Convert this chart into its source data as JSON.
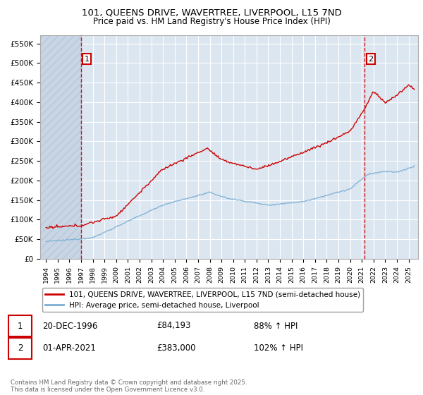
{
  "title_line1": "101, QUEENS DRIVE, WAVERTREE, LIVERPOOL, L15 7ND",
  "title_line2": "Price paid vs. HM Land Registry's House Price Index (HPI)",
  "ylim": [
    0,
    570000
  ],
  "yticks": [
    0,
    50000,
    100000,
    150000,
    200000,
    250000,
    300000,
    350000,
    400000,
    450000,
    500000,
    550000
  ],
  "ytick_labels": [
    "£0",
    "£50K",
    "£100K",
    "£150K",
    "£200K",
    "£250K",
    "£300K",
    "£350K",
    "£400K",
    "£450K",
    "£500K",
    "£550K"
  ],
  "background_color": "#ffffff",
  "plot_bg_color": "#dce6f1",
  "hatch_color": "#c0c8d8",
  "grid_color": "#ffffff",
  "property_color": "#cc0000",
  "hpi_color": "#7bafd4",
  "marker1_date": 1996.97,
  "marker1_value": 84193,
  "marker2_date": 2021.25,
  "marker2_value": 383000,
  "legend_label1": "101, QUEENS DRIVE, WAVERTREE, LIVERPOOL, L15 7ND (semi-detached house)",
  "legend_label2": "HPI: Average price, semi-detached house, Liverpool",
  "annotation1_date": "20-DEC-1996",
  "annotation1_price": "£84,193",
  "annotation1_hpi": "88% ↑ HPI",
  "annotation2_date": "01-APR-2021",
  "annotation2_price": "£383,000",
  "annotation2_hpi": "102% ↑ HPI",
  "footer": "Contains HM Land Registry data © Crown copyright and database right 2025.\nThis data is licensed under the Open Government Licence v3.0.",
  "xmin": 1993.5,
  "xmax": 2025.8
}
